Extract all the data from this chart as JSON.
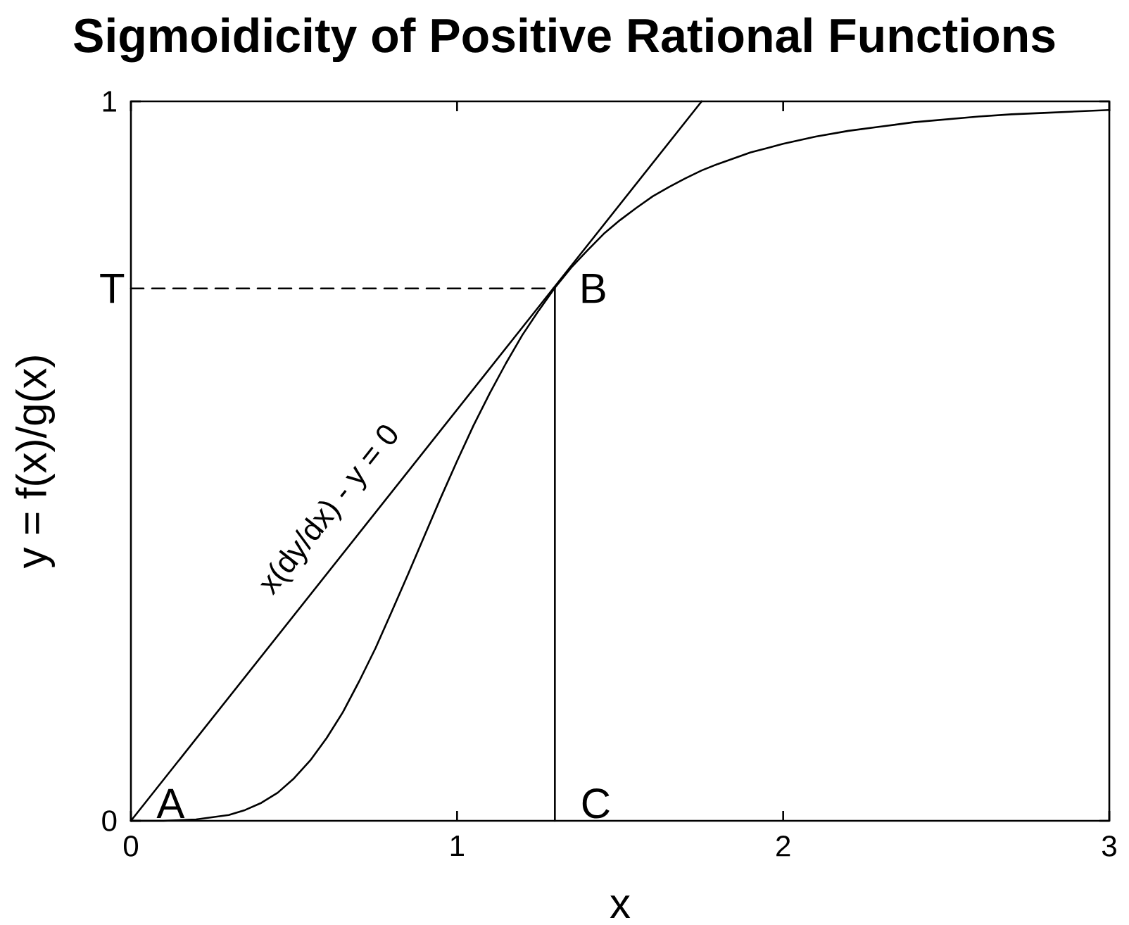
{
  "chart_data": {
    "type": "line",
    "title": "Sigmoidicity of Positive Rational Functions",
    "xlabel": "x",
    "ylabel": "y = f(x)/g(x)",
    "x": [
      0,
      0.1,
      0.2,
      0.3,
      0.35,
      0.4,
      0.45,
      0.5,
      0.55,
      0.6,
      0.65,
      0.7,
      0.75,
      0.8,
      0.85,
      0.9,
      0.95,
      1.0,
      1.05,
      1.1,
      1.15,
      1.2,
      1.25,
      1.3,
      1.35,
      1.4,
      1.45,
      1.5,
      1.55,
      1.6,
      1.65,
      1.7,
      1.75,
      1.8,
      1.85,
      1.9,
      1.95,
      2.0,
      2.1,
      2.2,
      2.3,
      2.4,
      2.5,
      2.6,
      2.7,
      2.8,
      2.9,
      3.0
    ],
    "xlim": [
      0,
      3
    ],
    "ylim": [
      0,
      1
    ],
    "xticks": [
      0,
      1,
      2,
      3
    ],
    "yticks": [
      0,
      1
    ],
    "marker": "none",
    "series": [
      {
        "color": "#000000",
        "values": [
          0,
          0,
          0.002,
          0.008,
          0.015,
          0.025,
          0.039,
          0.059,
          0.084,
          0.115,
          0.151,
          0.194,
          0.24,
          0.291,
          0.343,
          0.396,
          0.449,
          0.5,
          0.549,
          0.594,
          0.636,
          0.675,
          0.709,
          0.741,
          0.769,
          0.793,
          0.816,
          0.835,
          0.852,
          0.868,
          0.881,
          0.893,
          0.904,
          0.913,
          0.921,
          0.929,
          0.935,
          0.941,
          0.951,
          0.959,
          0.965,
          0.971,
          0.975,
          0.979,
          0.982,
          0.984,
          0.986,
          0.988
        ]
      },
      {
        "type": "line",
        "color": "#000000",
        "x": [
          0,
          1.75
        ],
        "values": [
          0,
          1
        ]
      },
      {
        "type": "line",
        "color": "#000000",
        "x": [
          0,
          1.3
        ],
        "values": [
          0.74,
          0.74
        ],
        "line_style": "dashed"
      },
      {
        "type": "line",
        "color": "#000000",
        "x": [
          1.3,
          1.3
        ],
        "values": [
          0,
          0.74
        ]
      }
    ],
    "annotations": [
      {
        "text": "x(dy/dx) - y = 0",
        "x": 0.7,
        "y": 0.4
      },
      {
        "text": "A",
        "x": 0,
        "y": 0
      },
      {
        "text": "B",
        "x": 1.3,
        "y": 0.74
      },
      {
        "text": "C",
        "x": 1.3,
        "y": 0
      },
      {
        "text": "T",
        "x": 0,
        "y": 0.74
      }
    ]
  }
}
